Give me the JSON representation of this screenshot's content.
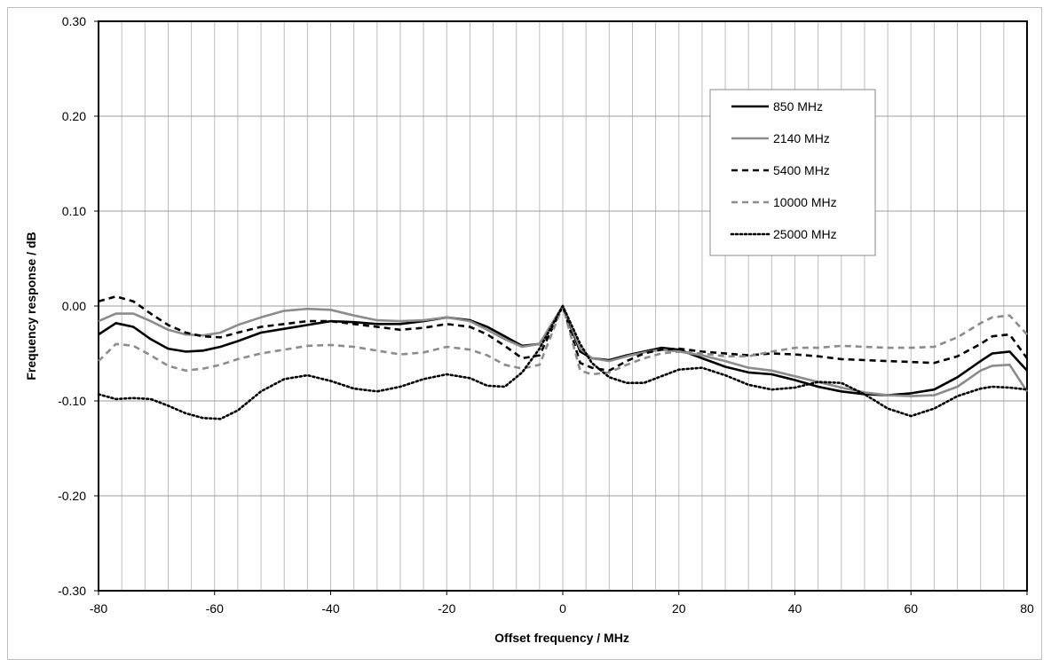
{
  "chart_data": {
    "type": "line",
    "xlabel": "Offset frequency / MHz",
    "ylabel": "Frequency response / dB",
    "xlim": [
      -80,
      80
    ],
    "ylim": [
      -0.3,
      0.3
    ],
    "x_ticks": [
      "-80",
      "-60",
      "-40",
      "-20",
      "0",
      "20",
      "40",
      "60",
      "80"
    ],
    "y_ticks": [
      "0.30",
      "0.20",
      "0.10",
      "0.00",
      "-0.10",
      "-0.20",
      "-0.30"
    ],
    "grid": true,
    "legend_position": "top-right",
    "series": [
      {
        "name": "850 MHz",
        "color": "#000000",
        "style": "solid",
        "points": [
          [
            -80,
            -0.03
          ],
          [
            -77,
            -0.018
          ],
          [
            -74,
            -0.022
          ],
          [
            -71,
            -0.035
          ],
          [
            -68,
            -0.045
          ],
          [
            -65,
            -0.048
          ],
          [
            -62,
            -0.047
          ],
          [
            -59,
            -0.043
          ],
          [
            -56,
            -0.037
          ],
          [
            -52,
            -0.028
          ],
          [
            -48,
            -0.024
          ],
          [
            -44,
            -0.02
          ],
          [
            -40,
            -0.016
          ],
          [
            -36,
            -0.017
          ],
          [
            -32,
            -0.019
          ],
          [
            -28,
            -0.019
          ],
          [
            -24,
            -0.016
          ],
          [
            -20,
            -0.012
          ],
          [
            -16,
            -0.015
          ],
          [
            -13,
            -0.022
          ],
          [
            -10,
            -0.032
          ],
          [
            -7,
            -0.042
          ],
          [
            -4,
            -0.04
          ],
          [
            0,
            0.0
          ],
          [
            3,
            -0.048
          ],
          [
            5,
            -0.055
          ],
          [
            8,
            -0.057
          ],
          [
            11,
            -0.052
          ],
          [
            14,
            -0.048
          ],
          [
            17,
            -0.044
          ],
          [
            20,
            -0.046
          ],
          [
            24,
            -0.055
          ],
          [
            28,
            -0.064
          ],
          [
            32,
            -0.07
          ],
          [
            36,
            -0.072
          ],
          [
            40,
            -0.078
          ],
          [
            44,
            -0.085
          ],
          [
            48,
            -0.09
          ],
          [
            52,
            -0.093
          ],
          [
            56,
            -0.094
          ],
          [
            60,
            -0.092
          ],
          [
            64,
            -0.088
          ],
          [
            68,
            -0.075
          ],
          [
            72,
            -0.058
          ],
          [
            74,
            -0.05
          ],
          [
            77,
            -0.048
          ],
          [
            80,
            -0.068
          ]
        ]
      },
      {
        "name": "2140 MHz",
        "color": "#8c8c8c",
        "style": "solid",
        "points": [
          [
            -80,
            -0.016
          ],
          [
            -77,
            -0.008
          ],
          [
            -74,
            -0.008
          ],
          [
            -71,
            -0.016
          ],
          [
            -68,
            -0.025
          ],
          [
            -65,
            -0.03
          ],
          [
            -62,
            -0.031
          ],
          [
            -59,
            -0.028
          ],
          [
            -56,
            -0.02
          ],
          [
            -52,
            -0.012
          ],
          [
            -48,
            -0.005
          ],
          [
            -44,
            -0.003
          ],
          [
            -40,
            -0.004
          ],
          [
            -36,
            -0.01
          ],
          [
            -32,
            -0.015
          ],
          [
            -28,
            -0.016
          ],
          [
            -24,
            -0.015
          ],
          [
            -20,
            -0.012
          ],
          [
            -16,
            -0.016
          ],
          [
            -13,
            -0.025
          ],
          [
            -10,
            -0.035
          ],
          [
            -7,
            -0.043
          ],
          [
            -4,
            -0.04
          ],
          [
            0,
            0.0
          ],
          [
            3,
            -0.045
          ],
          [
            5,
            -0.055
          ],
          [
            8,
            -0.058
          ],
          [
            11,
            -0.053
          ],
          [
            14,
            -0.049
          ],
          [
            17,
            -0.046
          ],
          [
            20,
            -0.048
          ],
          [
            24,
            -0.052
          ],
          [
            28,
            -0.058
          ],
          [
            32,
            -0.065
          ],
          [
            36,
            -0.068
          ],
          [
            40,
            -0.074
          ],
          [
            44,
            -0.08
          ],
          [
            48,
            -0.086
          ],
          [
            52,
            -0.091
          ],
          [
            56,
            -0.094
          ],
          [
            60,
            -0.095
          ],
          [
            64,
            -0.094
          ],
          [
            68,
            -0.085
          ],
          [
            72,
            -0.068
          ],
          [
            74,
            -0.063
          ],
          [
            77,
            -0.062
          ],
          [
            80,
            -0.09
          ]
        ]
      },
      {
        "name": "5400 MHz",
        "color": "#000000",
        "style": "dashed",
        "points": [
          [
            -80,
            0.005
          ],
          [
            -77,
            0.01
          ],
          [
            -74,
            0.005
          ],
          [
            -71,
            -0.008
          ],
          [
            -68,
            -0.02
          ],
          [
            -65,
            -0.028
          ],
          [
            -62,
            -0.032
          ],
          [
            -59,
            -0.033
          ],
          [
            -56,
            -0.028
          ],
          [
            -52,
            -0.022
          ],
          [
            -48,
            -0.019
          ],
          [
            -44,
            -0.016
          ],
          [
            -40,
            -0.016
          ],
          [
            -36,
            -0.019
          ],
          [
            -32,
            -0.022
          ],
          [
            -28,
            -0.025
          ],
          [
            -24,
            -0.023
          ],
          [
            -20,
            -0.019
          ],
          [
            -16,
            -0.022
          ],
          [
            -13,
            -0.03
          ],
          [
            -10,
            -0.042
          ],
          [
            -7,
            -0.055
          ],
          [
            -4,
            -0.052
          ],
          [
            0,
            0.0
          ],
          [
            3,
            -0.06
          ],
          [
            5,
            -0.065
          ],
          [
            8,
            -0.068
          ],
          [
            11,
            -0.058
          ],
          [
            14,
            -0.05
          ],
          [
            17,
            -0.046
          ],
          [
            20,
            -0.045
          ],
          [
            24,
            -0.048
          ],
          [
            28,
            -0.05
          ],
          [
            32,
            -0.052
          ],
          [
            36,
            -0.05
          ],
          [
            40,
            -0.051
          ],
          [
            44,
            -0.053
          ],
          [
            48,
            -0.056
          ],
          [
            52,
            -0.057
          ],
          [
            56,
            -0.058
          ],
          [
            60,
            -0.059
          ],
          [
            64,
            -0.06
          ],
          [
            68,
            -0.053
          ],
          [
            72,
            -0.04
          ],
          [
            74,
            -0.032
          ],
          [
            77,
            -0.03
          ],
          [
            80,
            -0.055
          ]
        ]
      },
      {
        "name": "10000 MHz",
        "color": "#8c8c8c",
        "style": "dashed",
        "points": [
          [
            -80,
            -0.058
          ],
          [
            -77,
            -0.04
          ],
          [
            -74,
            -0.042
          ],
          [
            -71,
            -0.052
          ],
          [
            -68,
            -0.063
          ],
          [
            -65,
            -0.068
          ],
          [
            -62,
            -0.066
          ],
          [
            -59,
            -0.062
          ],
          [
            -56,
            -0.056
          ],
          [
            -52,
            -0.05
          ],
          [
            -48,
            -0.046
          ],
          [
            -44,
            -0.042
          ],
          [
            -40,
            -0.041
          ],
          [
            -36,
            -0.043
          ],
          [
            -32,
            -0.047
          ],
          [
            -28,
            -0.051
          ],
          [
            -24,
            -0.049
          ],
          [
            -20,
            -0.043
          ],
          [
            -16,
            -0.046
          ],
          [
            -13,
            -0.052
          ],
          [
            -10,
            -0.062
          ],
          [
            -7,
            -0.066
          ],
          [
            -4,
            -0.062
          ],
          [
            0,
            0.0
          ],
          [
            3,
            -0.068
          ],
          [
            5,
            -0.072
          ],
          [
            8,
            -0.07
          ],
          [
            11,
            -0.062
          ],
          [
            14,
            -0.055
          ],
          [
            17,
            -0.05
          ],
          [
            20,
            -0.048
          ],
          [
            24,
            -0.05
          ],
          [
            28,
            -0.053
          ],
          [
            32,
            -0.053
          ],
          [
            36,
            -0.048
          ],
          [
            40,
            -0.044
          ],
          [
            44,
            -0.044
          ],
          [
            48,
            -0.042
          ],
          [
            52,
            -0.043
          ],
          [
            56,
            -0.044
          ],
          [
            60,
            -0.044
          ],
          [
            64,
            -0.043
          ],
          [
            68,
            -0.033
          ],
          [
            72,
            -0.018
          ],
          [
            74,
            -0.012
          ],
          [
            77,
            -0.01
          ],
          [
            80,
            -0.03
          ]
        ]
      },
      {
        "name": "25000 MHz",
        "color": "#000000",
        "style": "dotted",
        "points": [
          [
            -80,
            -0.093
          ],
          [
            -77,
            -0.098
          ],
          [
            -74,
            -0.097
          ],
          [
            -71,
            -0.098
          ],
          [
            -68,
            -0.105
          ],
          [
            -65,
            -0.113
          ],
          [
            -62,
            -0.118
          ],
          [
            -59,
            -0.119
          ],
          [
            -56,
            -0.11
          ],
          [
            -52,
            -0.09
          ],
          [
            -48,
            -0.077
          ],
          [
            -44,
            -0.073
          ],
          [
            -40,
            -0.079
          ],
          [
            -36,
            -0.087
          ],
          [
            -32,
            -0.09
          ],
          [
            -28,
            -0.085
          ],
          [
            -24,
            -0.077
          ],
          [
            -20,
            -0.072
          ],
          [
            -16,
            -0.076
          ],
          [
            -13,
            -0.084
          ],
          [
            -10,
            -0.085
          ],
          [
            -7,
            -0.07
          ],
          [
            -4,
            -0.045
          ],
          [
            0,
            0.0
          ],
          [
            3,
            -0.04
          ],
          [
            5,
            -0.06
          ],
          [
            8,
            -0.075
          ],
          [
            11,
            -0.081
          ],
          [
            14,
            -0.081
          ],
          [
            17,
            -0.074
          ],
          [
            20,
            -0.067
          ],
          [
            24,
            -0.065
          ],
          [
            28,
            -0.073
          ],
          [
            32,
            -0.083
          ],
          [
            36,
            -0.088
          ],
          [
            40,
            -0.086
          ],
          [
            44,
            -0.08
          ],
          [
            48,
            -0.081
          ],
          [
            52,
            -0.093
          ],
          [
            56,
            -0.108
          ],
          [
            60,
            -0.116
          ],
          [
            64,
            -0.108
          ],
          [
            68,
            -0.095
          ],
          [
            72,
            -0.087
          ],
          [
            74,
            -0.085
          ],
          [
            77,
            -0.086
          ],
          [
            80,
            -0.088
          ]
        ]
      }
    ]
  }
}
